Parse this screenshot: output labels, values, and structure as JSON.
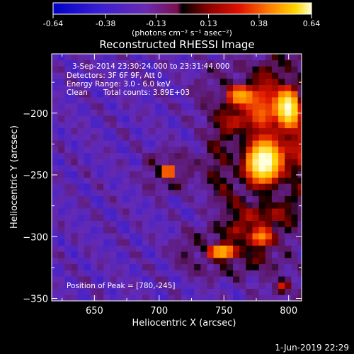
{
  "chart_data": {
    "type": "heatmap",
    "title": "Reconstructed RHESSI Image",
    "colorbar": {
      "ticks": [
        -0.64,
        -0.38,
        -0.13,
        0.13,
        0.38,
        0.64
      ],
      "tick_labels": [
        "-0.64",
        "-0.38",
        "-0.13",
        "0.13",
        "0.38",
        "0.64"
      ],
      "unit_label": "(photons cm⁻² s⁻¹ asec⁻²)",
      "range": [
        -0.64,
        0.64
      ]
    },
    "xlabel": "Heliocentric X (arcsec)",
    "ylabel": "Heliocentric Y (arcsec)",
    "xlim": [
      617,
      810
    ],
    "ylim": [
      -352,
      -152
    ],
    "xticks": [
      650,
      700,
      750,
      800
    ],
    "yticks": [
      -200,
      -250,
      -300,
      -350
    ],
    "xtick_labels": [
      "650",
      "700",
      "750",
      "800"
    ],
    "ytick_labels": [
      "−200",
      "−250",
      "−300",
      "−350"
    ],
    "annotations": {
      "time_range": "3-Sep-2014 23:30:24.000 to 23:31:44.000",
      "detectors": "Detectors: 3F 6F 9F, Att 0",
      "energy": "Energy Range: 3.0 - 6.0 keV",
      "clean": "Clean",
      "counts": "Total counts: 3.89E+03",
      "peak": "Position of Peak = [780,-245]"
    },
    "peak": [
      780,
      -245
    ],
    "sources": [
      {
        "x": 780,
        "y": -240,
        "sx": 22,
        "sy": 28,
        "amp": 0.55
      },
      {
        "x": 800,
        "y": -195,
        "sx": 14,
        "sy": 25,
        "amp": 0.42
      },
      {
        "x": 762,
        "y": -185,
        "sx": 18,
        "sy": 14,
        "amp": 0.3
      },
      {
        "x": 707,
        "y": -247,
        "sx": 10,
        "sy": 9,
        "amp": 0.36
      },
      {
        "x": 748,
        "y": -312,
        "sx": 18,
        "sy": 11,
        "amp": 0.38
      },
      {
        "x": 780,
        "y": -300,
        "sx": 14,
        "sy": 12,
        "amp": 0.22
      },
      {
        "x": 795,
        "y": -340,
        "sx": 10,
        "sy": 10,
        "amp": 0.2
      }
    ]
  },
  "footer": {
    "date": "1-Jun-2019 22:29"
  }
}
